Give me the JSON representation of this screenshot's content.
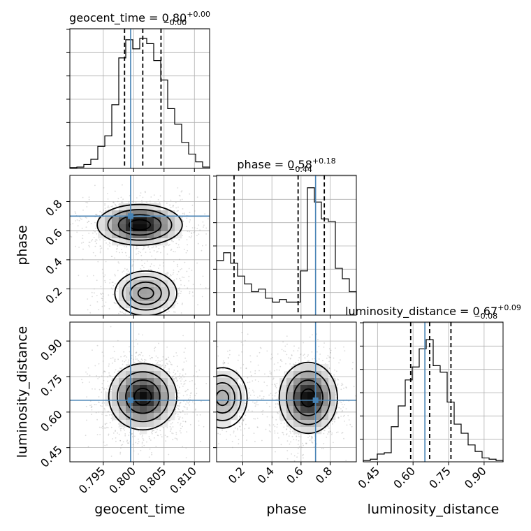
{
  "chart_data": {
    "type": "corner",
    "parameters": [
      "geocent_time",
      "phase",
      "luminosity_distance"
    ],
    "truth": {
      "geocent_time": 0.7995,
      "phase": 0.7,
      "luminosity_distance": 0.65
    },
    "colors": {
      "truth": "#4682b4",
      "hist": "#000000",
      "grid": "#b0b0b0",
      "scatter": "#999999"
    },
    "titles": [
      {
        "param": "geocent_time",
        "prefix": "geocent_time = 0.80",
        "plus": "+0.00",
        "minus": "−0.00"
      },
      {
        "param": "phase",
        "prefix": "phase = 0.58",
        "plus": "+0.18",
        "minus": "−0.44"
      },
      {
        "param": "luminosity_distance",
        "prefix": "luminosity_distance = 0.67",
        "plus": "+0.09",
        "minus": "−0.08"
      }
    ],
    "axes": {
      "geocent_time": {
        "range": [
          0.7895,
          0.8125
        ],
        "ticks": [
          0.795,
          0.8,
          0.805,
          0.81
        ],
        "tick_labels": [
          "0.795",
          "0.800",
          "0.805",
          "0.810"
        ],
        "label": "geocent_time"
      },
      "phase": {
        "range": [
          0.02,
          0.98
        ],
        "ticks": [
          0.2,
          0.4,
          0.6,
          0.8
        ],
        "tick_labels": [
          "0.2",
          "0.4",
          "0.6",
          "0.8"
        ],
        "label": "phase"
      },
      "luminosity_distance": {
        "range": [
          0.39,
          0.98
        ],
        "ticks": [
          0.45,
          0.6,
          0.75,
          0.9
        ],
        "tick_labels": [
          "0.45",
          "0.60",
          "0.75",
          "0.90"
        ],
        "label": "luminosity_distance"
      }
    },
    "quantiles": {
      "geocent_time": [
        0.7985,
        0.8015,
        0.8045
      ],
      "phase": [
        0.14,
        0.58,
        0.76
      ],
      "luminosity_distance": [
        0.59,
        0.67,
        0.76
      ]
    },
    "histograms": {
      "geocent_time": [
        0.006,
        0.01,
        0.03,
        0.07,
        0.17,
        0.25,
        0.49,
        0.85,
        0.99,
        0.92,
        1.0,
        0.96,
        0.83,
        0.68,
        0.46,
        0.34,
        0.2,
        0.11,
        0.05,
        0.01
      ],
      "phase": [
        0.42,
        0.48,
        0.4,
        0.3,
        0.24,
        0.18,
        0.2,
        0.13,
        0.1,
        0.12,
        0.1,
        0.1,
        0.34,
        0.98,
        0.87,
        0.74,
        0.72,
        0.36,
        0.28,
        0.18
      ],
      "luminosity_distance": [
        0.01,
        0.02,
        0.06,
        0.07,
        0.27,
        0.43,
        0.63,
        0.73,
        0.87,
        0.94,
        0.74,
        0.69,
        0.46,
        0.29,
        0.22,
        0.13,
        0.08,
        0.03,
        0.02,
        0.01
      ]
    },
    "density_2d": [
      {
        "x": "geocent_time",
        "y": "phase",
        "modes": [
          {
            "x": 0.801,
            "y": 0.64,
            "sx": 0.0035,
            "sy": 0.07,
            "w": 1.0
          },
          {
            "x": 0.802,
            "y": 0.17,
            "sx": 0.003,
            "sy": 0.09,
            "w": 0.45
          }
        ]
      },
      {
        "x": "geocent_time",
        "y": "luminosity_distance",
        "modes": [
          {
            "x": 0.8015,
            "y": 0.665,
            "sx": 0.0028,
            "sy": 0.07,
            "w": 1.0
          }
        ]
      },
      {
        "x": "phase",
        "y": "luminosity_distance",
        "modes": [
          {
            "x": 0.65,
            "y": 0.66,
            "sx": 0.1,
            "sy": 0.075,
            "w": 1.0
          },
          {
            "x": 0.06,
            "y": 0.66,
            "sx": 0.1,
            "sy": 0.075,
            "w": 0.4
          }
        ]
      }
    ]
  }
}
